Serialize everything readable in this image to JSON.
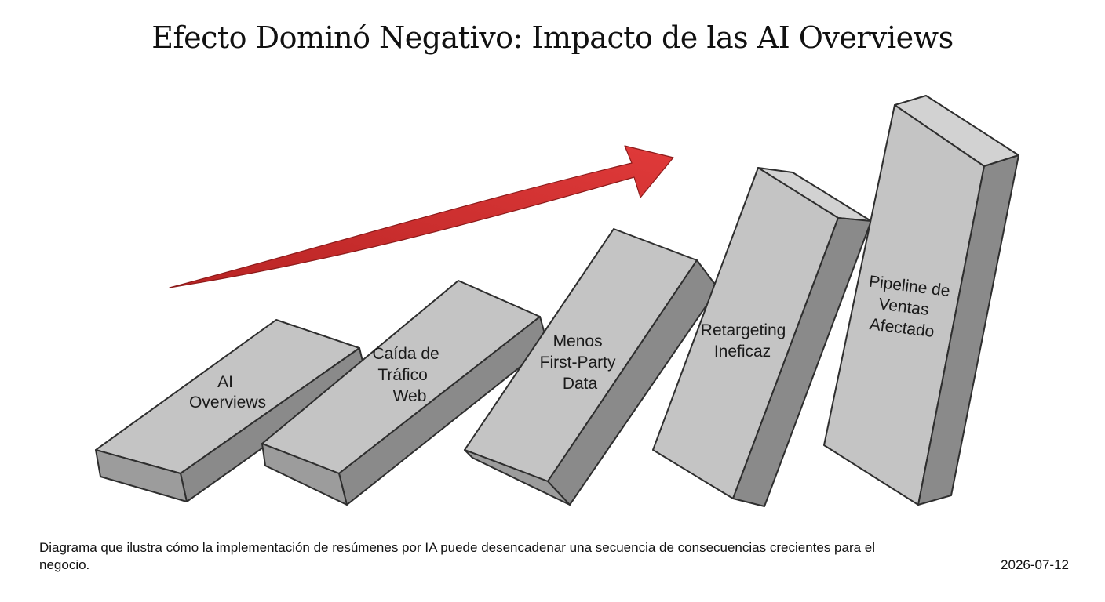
{
  "title": "Efecto Dominó Negativo: Impacto de las AI Overviews",
  "dominoes": [
    {
      "lines": [
        "AI",
        "Overviews"
      ]
    },
    {
      "lines": [
        "Caída de",
        "Tráfico",
        "Web"
      ]
    },
    {
      "lines": [
        "Menos",
        "First-Party",
        "Data"
      ]
    },
    {
      "lines": [
        "Retargeting",
        "Ineficaz"
      ]
    },
    {
      "lines": [
        "Pipeline de",
        "Ventas",
        "Afectado"
      ]
    }
  ],
  "caption": "Diagrama que ilustra cómo la implementación de resúmenes por IA puede desencadenar una secuencia de consecuencias crecientes para el negocio.",
  "date": "2026-07-12",
  "colors": {
    "front": "#c4c4c4",
    "top": "#d2d2d2",
    "side": "#8a8a8a",
    "outline": "#2e2e2e",
    "arrow": "#d03030"
  }
}
